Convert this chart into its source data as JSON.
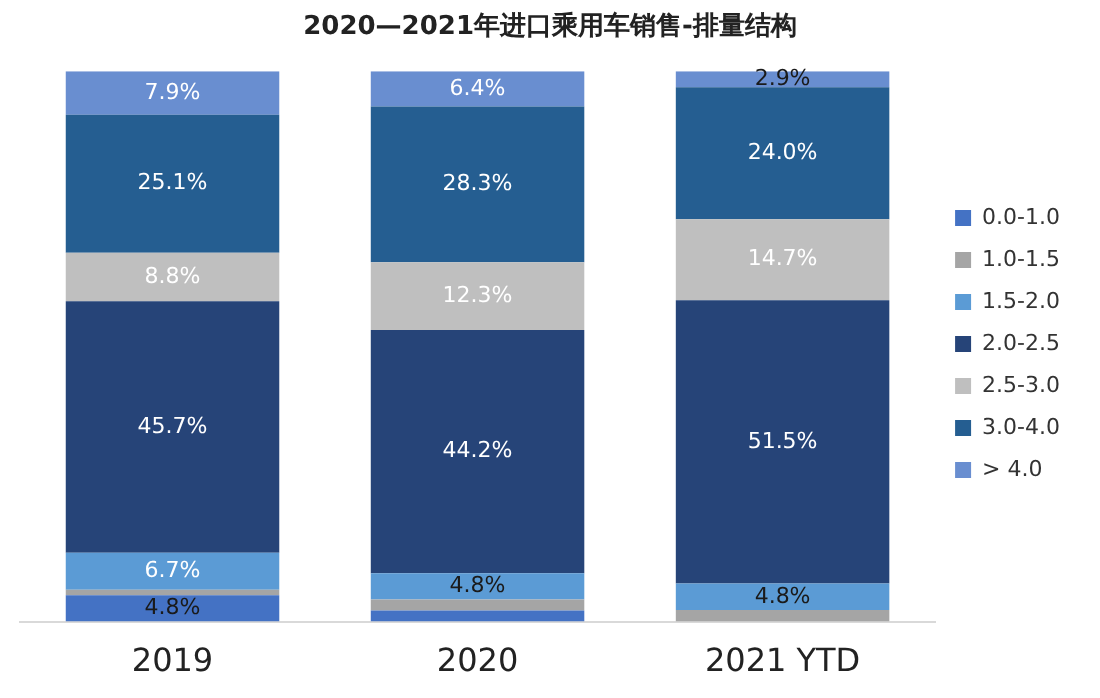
{
  "chart_data": {
    "type": "bar",
    "title": "2020—2021年进口乘用车销售-排量结构",
    "categories": [
      "2019",
      "2020",
      "2021 YTD"
    ],
    "stacked": true,
    "legend": "right",
    "tick_labels": "x",
    "ylim": [
      0,
      100
    ],
    "series": [
      {
        "name": "0.0-1.0",
        "color": "#4472c4",
        "values": [
          4.8,
          2.0,
          0
        ],
        "value_labels": [
          "4.8%",
          null,
          null
        ]
      },
      {
        "name": "1.0-1.5",
        "color": "#a5a5a5",
        "values": [
          1.0,
          2.0,
          2.1
        ],
        "value_labels": [
          null,
          null,
          null
        ]
      },
      {
        "name": "1.5-2.0",
        "color": "#5b9bd5",
        "values": [
          6.7,
          4.8,
          4.8
        ],
        "value_labels": [
          "6.7%",
          "4.8%",
          "4.8%"
        ]
      },
      {
        "name": "2.0-2.5",
        "color": "#264478",
        "values": [
          45.7,
          44.2,
          51.5
        ],
        "value_labels": [
          "45.7%",
          "44.2%",
          "51.5%"
        ]
      },
      {
        "name": "2.5-3.0",
        "color": "#bfbfbf",
        "values": [
          8.8,
          12.3,
          14.7
        ],
        "value_labels": [
          "8.8%",
          "12.3%",
          "14.7%"
        ]
      },
      {
        "name": "3.0-4.0",
        "color": "#255e91",
        "values": [
          25.1,
          28.3,
          24.0
        ],
        "value_labels": [
          "25.1%",
          "28.3%",
          "24.0%"
        ]
      },
      {
        "name": "> 4.0",
        "color": "#698ed0",
        "values": [
          7.9,
          6.4,
          2.9
        ],
        "value_labels": [
          "7.9%",
          "6.4%",
          "2.9%"
        ]
      }
    ]
  }
}
